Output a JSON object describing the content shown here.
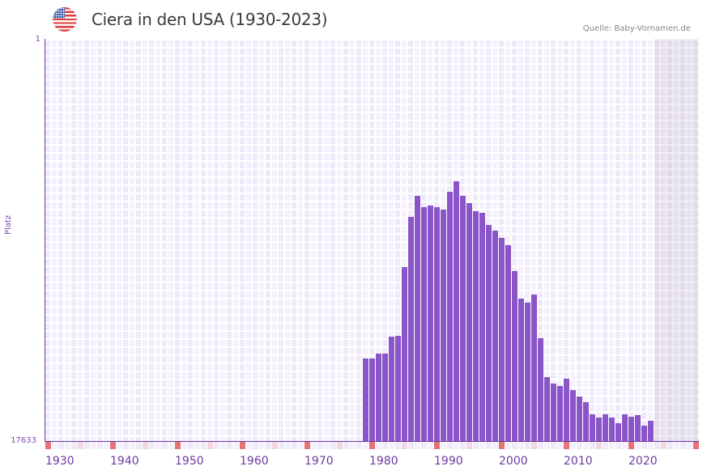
{
  "header": {
    "flag_icon": "us-flag-icon",
    "title": "Ciera in den USA (1930-2023)",
    "source": "Quelle: Baby-Vornamen.de"
  },
  "axes": {
    "y_label": "Platz",
    "y_top_tick": "1",
    "y_bottom_tick": "17633",
    "x_ticks": [
      "1930",
      "1940",
      "1950",
      "1960",
      "1970",
      "1980",
      "1990",
      "2000",
      "2010",
      "2020"
    ]
  },
  "colors": {
    "bar": "#8a55c8",
    "axis": "#6b3aa0",
    "decade_marker": "#e57373",
    "half_decade_marker": "#f5d5de",
    "title": "#3a3a3a"
  },
  "chart_data": {
    "type": "bar",
    "title": "Ciera in den USA (1930-2023)",
    "xlabel": "",
    "ylabel": "Platz",
    "y_inverted": true,
    "ylim": [
      17633,
      1
    ],
    "xlim": [
      1930,
      2030
    ],
    "grid": true,
    "legend": null,
    "annotations": [
      "Quelle: Baby-Vornamen.de"
    ],
    "categories": [
      1979,
      1980,
      1981,
      1982,
      1983,
      1984,
      1985,
      1986,
      1987,
      1988,
      1989,
      1990,
      1991,
      1992,
      1993,
      1994,
      1995,
      1996,
      1997,
      1998,
      1999,
      2000,
      2001,
      2002,
      2003,
      2004,
      2005,
      2006,
      2007,
      2008,
      2009,
      2010,
      2011,
      2012,
      2013,
      2014,
      2015,
      2016,
      2017,
      2018,
      2019,
      2020,
      2021,
      2022,
      2023
    ],
    "values": [
      14016,
      14016,
      13803,
      13803,
      13058,
      13022,
      10006,
      7807,
      6884,
      7381,
      7310,
      7381,
      7487,
      6707,
      6246,
      6884,
      7203,
      7558,
      7629,
      8161,
      8410,
      8729,
      9048,
      10184,
      11390,
      11568,
      11213,
      13129,
      14832,
      15116,
      15222,
      14903,
      15400,
      15684,
      15932,
      16464,
      16606,
      16464,
      16606,
      16855,
      16464,
      16571,
      16500,
      16961,
      16748
    ]
  }
}
